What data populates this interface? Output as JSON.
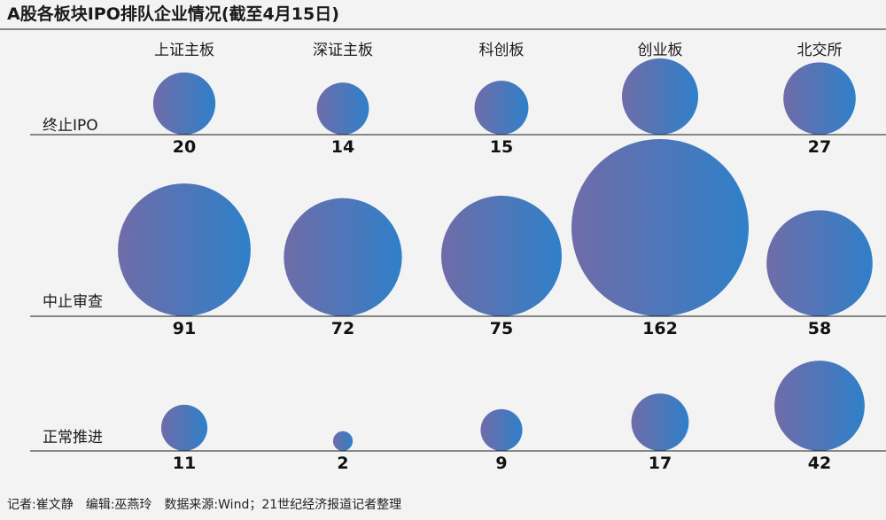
{
  "chart_data": {
    "type": "bubble",
    "title": "A股各板块IPO排队企业情况(截至4月15日)",
    "categories": [
      "上证主板",
      "深证主板",
      "科创板",
      "创业板",
      "北交所"
    ],
    "rows": [
      {
        "name": "终止IPO",
        "values": [
          20,
          14,
          15,
          30,
          27
        ]
      },
      {
        "name": "中止审查",
        "values": [
          91,
          72,
          75,
          162,
          58
        ]
      },
      {
        "name": "正常推进",
        "values": [
          11,
          2,
          9,
          17,
          42
        ]
      }
    ]
  },
  "footer": "记者:崔文静　编辑:巫燕玲　数据来源:Wind；21世纪经济报道记者整理",
  "colors": {
    "bubble_start": "#6f6ca8",
    "bubble_end": "#2f80c9",
    "divider": "#1a1a1a"
  }
}
